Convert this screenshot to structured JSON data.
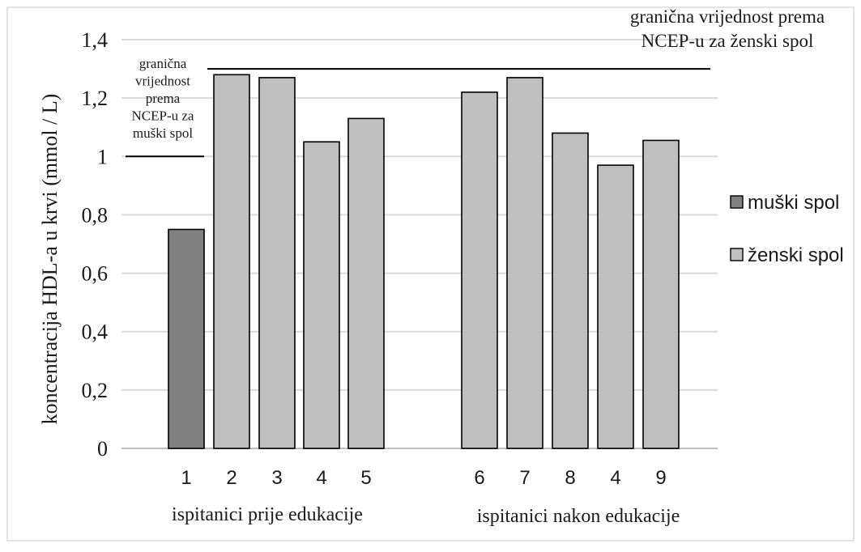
{
  "chart_data": {
    "type": "bar",
    "ylabel": "koncentracija HDL-a u krvi (mmol / L)",
    "ylim": [
      0,
      1.4
    ],
    "yticks": [
      "0",
      "0,2",
      "0,4",
      "0,6",
      "0,8",
      "1",
      "1,2",
      "1,4"
    ],
    "grid": true,
    "legend_placement": "right",
    "categories": [
      "1",
      "2",
      "3",
      "4",
      "5",
      "6",
      "7",
      "8",
      "4",
      "9"
    ],
    "values": [
      0.75,
      1.28,
      1.27,
      1.05,
      1.13,
      1.22,
      1.27,
      1.08,
      0.97,
      1.055
    ],
    "bar_sex": [
      "male",
      "female",
      "female",
      "female",
      "female",
      "female",
      "female",
      "female",
      "female",
      "female"
    ],
    "groups": [
      {
        "label": "ispitanici prije edukacije",
        "categories": [
          "1",
          "2",
          "3",
          "4",
          "5"
        ]
      },
      {
        "label": "ispitanici nakon edukacije",
        "categories": [
          "6",
          "7",
          "8",
          "4",
          "9"
        ]
      }
    ],
    "legend": [
      {
        "label": "muški spol",
        "color": "#808080"
      },
      {
        "label": "ženski spol",
        "color": "#bfbfbf"
      }
    ],
    "reference_lines": [
      {
        "value": 1.0,
        "label_lines": [
          "granična",
          "vrijednost",
          "prema",
          "NCEP-u za",
          "muški spol"
        ]
      },
      {
        "value": 1.3,
        "label_lines": [
          "granična vrijednost prema",
          "NCEP-u za ženski spol"
        ]
      }
    ],
    "colors": {
      "male": "#808080",
      "female": "#bfbfbf",
      "outline": "#000000",
      "grid": "#d9d9d9",
      "border": "#d9d9d9"
    }
  }
}
